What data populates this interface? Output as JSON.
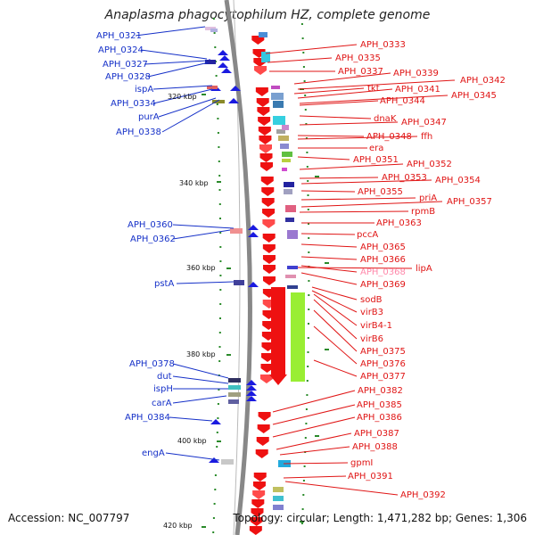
{
  "title": "Anaplasma phagocytophilum HZ, complete genome",
  "footer": {
    "accession": "Accession: NC_007797",
    "summary": "Topology: circular; Length: 1,471,282 bp; Genes: 1,306"
  },
  "ticks": [
    "320 kbp",
    "340 kbp",
    "360 kbp",
    "380 kbp",
    "400 kbp",
    "420 kbp"
  ],
  "left_labels": [
    "APH_0321",
    "APH_0324",
    "APH_0327",
    "APH_0328",
    "ispA",
    "APH_0334",
    "purA",
    "APH_0338",
    "APH_0360",
    "APH_0362",
    "pstA",
    "APH_0378",
    "dut",
    "ispH",
    "carA",
    "APH_0384",
    "engA"
  ],
  "right_labels": [
    "APH_0333",
    "APH_0335",
    "APH_0337",
    "APH_0339",
    "APH_0342",
    "tkt",
    "APH_0341",
    "APH_0345",
    "APH_0344",
    "dnaK",
    "APH_0347",
    "APH_0348",
    "ffh",
    "era",
    "APH_0351",
    "APH_0352",
    "APH_0353",
    "APH_0354",
    "APH_0355",
    "priA",
    "APH_0357",
    "rpmB",
    "APH_0363",
    "pccA",
    "APH_0365",
    "APH_0366",
    "APH_0368",
    "lipA",
    "APH_0369",
    "sodB",
    "virB3",
    "virB4-1",
    "virB6",
    "APH_0375",
    "APH_0376",
    "APH_0377",
    "APH_0382",
    "APH_0385",
    "APH_0386",
    "APH_0387",
    "APH_0388",
    "gpmI",
    "APH_0391",
    "APH_0392"
  ]
}
